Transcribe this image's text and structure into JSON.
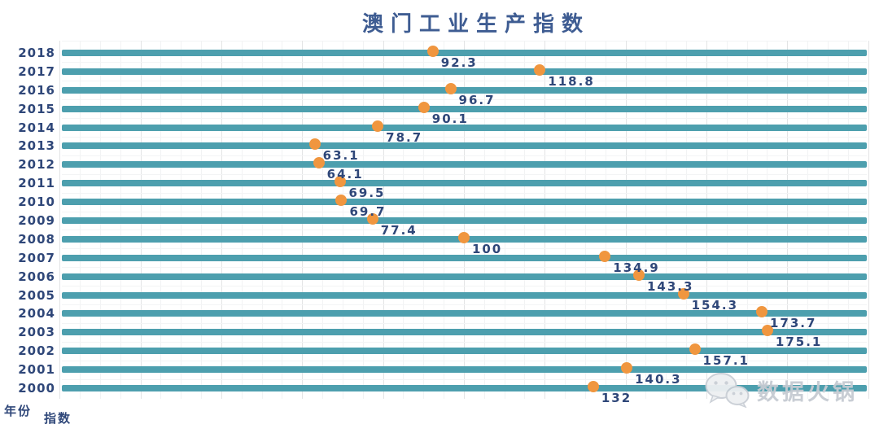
{
  "title": "澳门工业生产指数",
  "axes": {
    "y_axis_title": "年份",
    "x_axis_title": "指数"
  },
  "watermark": {
    "label": "数据火锅",
    "icon": "wechat-icon"
  },
  "colors": {
    "band": "#4d9fae",
    "dot": "#f0963f",
    "label_text": "#2f4779",
    "title_text": "#3e5c92",
    "watermark_text": "#c6cbd2"
  },
  "chart_data": {
    "type": "scatter",
    "subtype": "horizontal-dot-plot-with-full-width-bands",
    "title": "澳门工业生产指数",
    "xlabel": "指数",
    "ylabel": "年份",
    "xlim": [
      0,
      200
    ],
    "grid": true,
    "grid_major_step": 20,
    "grid_minor_step": 5,
    "legend": "none",
    "categories": [
      "2018",
      "2017",
      "2016",
      "2015",
      "2014",
      "2013",
      "2012",
      "2011",
      "2010",
      "2009",
      "2008",
      "2007",
      "2006",
      "2005",
      "2004",
      "2003",
      "2002",
      "2001",
      "2000"
    ],
    "values": [
      92.3,
      118.8,
      96.7,
      90.1,
      78.7,
      63.1,
      64.1,
      69.5,
      69.7,
      77.4,
      100,
      134.9,
      143.3,
      154.3,
      173.7,
      175.1,
      157.1,
      140.3,
      132
    ],
    "value_labels": [
      "92.3",
      "118.8",
      "96.7",
      "90.1",
      "78.7",
      "63.1",
      "64.1",
      "69.5",
      "69.7",
      "77.4",
      "100",
      "134.9",
      "143.3",
      "154.3",
      "173.7",
      "175.1",
      "157.1",
      "140.3",
      "132"
    ],
    "band_note": "each year row shows a full-width teal band; the orange dot marks the index value"
  }
}
